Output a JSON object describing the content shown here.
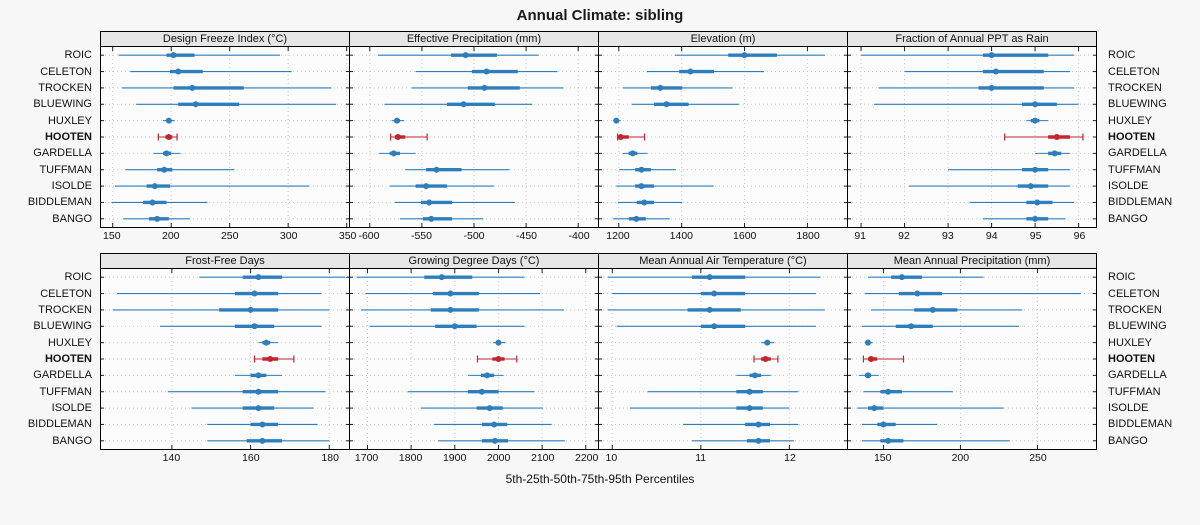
{
  "title": "Annual Climate: sibling",
  "caption": "5th-25th-50th-75th-95th Percentiles",
  "sites": [
    "ROIC",
    "CELETON",
    "TROCKEN",
    "BLUEWING",
    "HUXLEY",
    "HOOTEN",
    "GARDELLA",
    "TUFFMAN",
    "ISOLDE",
    "BIDDLEMAN",
    "BANGO"
  ],
  "highlight_site": "HOOTEN",
  "colors": {
    "series": "#2e7ebc",
    "highlight": "#c0262c",
    "strip_bg": "#e6e6e6",
    "grid": "#c9c9c9",
    "border": "#000000"
  },
  "chart_data": {
    "type": "dotplot-percentiles",
    "percentile_labels": [
      5,
      25,
      50,
      75,
      95
    ],
    "legend_position": "none",
    "grid": "dotted",
    "panels": [
      {
        "title": "Design Freeze Index (°C)",
        "xlim": [
          140,
          352
        ],
        "ticks": [
          150,
          200,
          250,
          300,
          350
        ],
        "values": [
          [
            155,
            196,
            202,
            220,
            293
          ],
          [
            165,
            199,
            206,
            227,
            303
          ],
          [
            158,
            202,
            218,
            262,
            337
          ],
          [
            170,
            206,
            221,
            258,
            341
          ],
          [
            193,
            196,
            198,
            200,
            203
          ],
          [
            189,
            195,
            198,
            201,
            205
          ],
          [
            185,
            193,
            196,
            200,
            208
          ],
          [
            161,
            188,
            194,
            201,
            254
          ],
          [
            152,
            179,
            186,
            199,
            318
          ],
          [
            149,
            176,
            184,
            196,
            231
          ],
          [
            159,
            181,
            188,
            198,
            216
          ]
        ]
      },
      {
        "title": "Effective Precipitation (mm)",
        "xlim": [
          -619,
          -381
        ],
        "ticks": [
          -600,
          -550,
          -500,
          -450,
          -400
        ],
        "values": [
          [
            -592,
            -522,
            -508,
            -478,
            -438
          ],
          [
            -556,
            -502,
            -488,
            -458,
            -420
          ],
          [
            -560,
            -506,
            -490,
            -456,
            -414
          ],
          [
            -586,
            -526,
            -510,
            -480,
            -444
          ],
          [
            -579,
            -576,
            -574,
            -571,
            -567
          ],
          [
            -580,
            -576,
            -573,
            -566,
            -545
          ],
          [
            -591,
            -581,
            -577,
            -571,
            -556
          ],
          [
            -566,
            -546,
            -536,
            -512,
            -466
          ],
          [
            -581,
            -556,
            -546,
            -526,
            -481
          ],
          [
            -576,
            -551,
            -543,
            -521,
            -461
          ],
          [
            -571,
            -549,
            -541,
            -521,
            -491
          ]
        ]
      },
      {
        "title": "Elevation (m)",
        "xlim": [
          1137,
          1926
        ],
        "ticks": [
          1200,
          1400,
          1600,
          1800
        ],
        "values": [
          [
            1378,
            1548,
            1600,
            1703,
            1856
          ],
          [
            1289,
            1392,
            1428,
            1503,
            1662
          ],
          [
            1212,
            1302,
            1332,
            1402,
            1562
          ],
          [
            1242,
            1312,
            1352,
            1422,
            1582
          ],
          [
            1183,
            1188,
            1192,
            1197,
            1206
          ],
          [
            1196,
            1201,
            1206,
            1232,
            1282
          ],
          [
            1212,
            1231,
            1244,
            1259,
            1291
          ],
          [
            1202,
            1252,
            1272,
            1302,
            1382
          ],
          [
            1192,
            1252,
            1272,
            1312,
            1502
          ],
          [
            1197,
            1257,
            1281,
            1312,
            1402
          ],
          [
            1182,
            1232,
            1256,
            1286,
            1362
          ]
        ]
      },
      {
        "title": "Fraction of Annual PPT as Rain",
        "xlim": [
          90.7,
          96.4
        ],
        "ticks": [
          91,
          92,
          93,
          94,
          95,
          96
        ],
        "values": [
          [
            91.0,
            93.8,
            94.0,
            95.3,
            95.9
          ],
          [
            92.0,
            93.8,
            94.1,
            95.2,
            95.8
          ],
          [
            91.4,
            93.7,
            94.0,
            95.2,
            95.9
          ],
          [
            91.3,
            94.7,
            95.0,
            95.5,
            96.0
          ],
          [
            94.8,
            94.9,
            95.0,
            95.1,
            95.3
          ],
          [
            94.3,
            95.3,
            95.5,
            95.8,
            96.1
          ],
          [
            95.0,
            95.3,
            95.45,
            95.6,
            95.8
          ],
          [
            93.0,
            94.7,
            95.0,
            95.3,
            95.8
          ],
          [
            92.1,
            94.6,
            94.9,
            95.3,
            95.8
          ],
          [
            93.5,
            94.8,
            95.05,
            95.4,
            95.9
          ],
          [
            93.8,
            94.8,
            95.0,
            95.3,
            95.7
          ]
        ]
      },
      {
        "title": "Frost-Free Days",
        "xlim": [
          122,
          185
        ],
        "ticks": [
          140,
          160,
          180
        ],
        "values": [
          [
            147,
            158,
            162,
            168,
            184
          ],
          [
            126,
            156,
            161,
            167,
            178
          ],
          [
            125,
            152,
            160,
            167,
            180
          ],
          [
            137,
            156,
            161,
            166,
            178
          ],
          [
            162,
            163,
            164,
            165,
            167
          ],
          [
            161,
            163,
            165,
            167,
            171
          ],
          [
            156,
            160,
            162,
            164,
            168
          ],
          [
            139,
            158,
            162,
            167,
            179
          ],
          [
            145,
            158,
            162,
            166,
            176
          ],
          [
            149,
            160,
            163,
            167,
            177
          ],
          [
            149,
            159,
            163,
            168,
            180
          ]
        ]
      },
      {
        "title": "Growing Degree Days (°C)",
        "xlim": [
          1660,
          2228
        ],
        "ticks": [
          1700,
          1800,
          1900,
          2000,
          2100,
          2200
        ],
        "values": [
          [
            1675,
            1830,
            1870,
            1940,
            2060
          ],
          [
            1695,
            1850,
            1890,
            1955,
            2095
          ],
          [
            1685,
            1845,
            1890,
            1955,
            2150
          ],
          [
            1705,
            1855,
            1900,
            1950,
            2060
          ],
          [
            1988,
            1995,
            2000,
            2006,
            2016
          ],
          [
            1952,
            1986,
            2000,
            2014,
            2042
          ],
          [
            1930,
            1960,
            1974,
            1990,
            2012
          ],
          [
            1792,
            1930,
            1962,
            2000,
            2082
          ],
          [
            1822,
            1950,
            1980,
            2010,
            2102
          ],
          [
            1852,
            1962,
            1990,
            2020,
            2122
          ],
          [
            1862,
            1962,
            1992,
            2022,
            2152
          ]
        ]
      },
      {
        "title": "Mean Annual Air Temperature (°C)",
        "xlim": [
          9.85,
          12.65
        ],
        "ticks": [
          10,
          11,
          12
        ],
        "values": [
          [
            9.95,
            10.9,
            11.1,
            11.5,
            12.35
          ],
          [
            10.0,
            11.0,
            11.15,
            11.5,
            12.3
          ],
          [
            9.95,
            10.85,
            11.1,
            11.45,
            12.4
          ],
          [
            10.05,
            11.0,
            11.15,
            11.5,
            12.3
          ],
          [
            11.68,
            11.72,
            11.75,
            11.78,
            11.83
          ],
          [
            11.6,
            11.68,
            11.73,
            11.79,
            11.87
          ],
          [
            11.4,
            11.55,
            11.61,
            11.68,
            11.79
          ],
          [
            10.4,
            11.4,
            11.55,
            11.7,
            12.1
          ],
          [
            10.2,
            11.4,
            11.55,
            11.7,
            12.0
          ],
          [
            10.8,
            11.5,
            11.65,
            11.78,
            12.1
          ],
          [
            10.9,
            11.52,
            11.65,
            11.78,
            12.05
          ]
        ]
      },
      {
        "title": "Mean Annual Precipitation (mm)",
        "xlim": [
          127,
          288
        ],
        "ticks": [
          150,
          200,
          250
        ],
        "values": [
          [
            140,
            155,
            162,
            175,
            215
          ],
          [
            138,
            160,
            172,
            188,
            278
          ],
          [
            142,
            170,
            182,
            198,
            240
          ],
          [
            136,
            158,
            168,
            182,
            238
          ],
          [
            138,
            139,
            140,
            141,
            143
          ],
          [
            137,
            140,
            142,
            146,
            163
          ],
          [
            134,
            138,
            140,
            142,
            147
          ],
          [
            137,
            148,
            153,
            162,
            195
          ],
          [
            133,
            140,
            144,
            150,
            228
          ],
          [
            136,
            146,
            150,
            158,
            185
          ],
          [
            136,
            148,
            153,
            163,
            232
          ]
        ]
      }
    ]
  }
}
